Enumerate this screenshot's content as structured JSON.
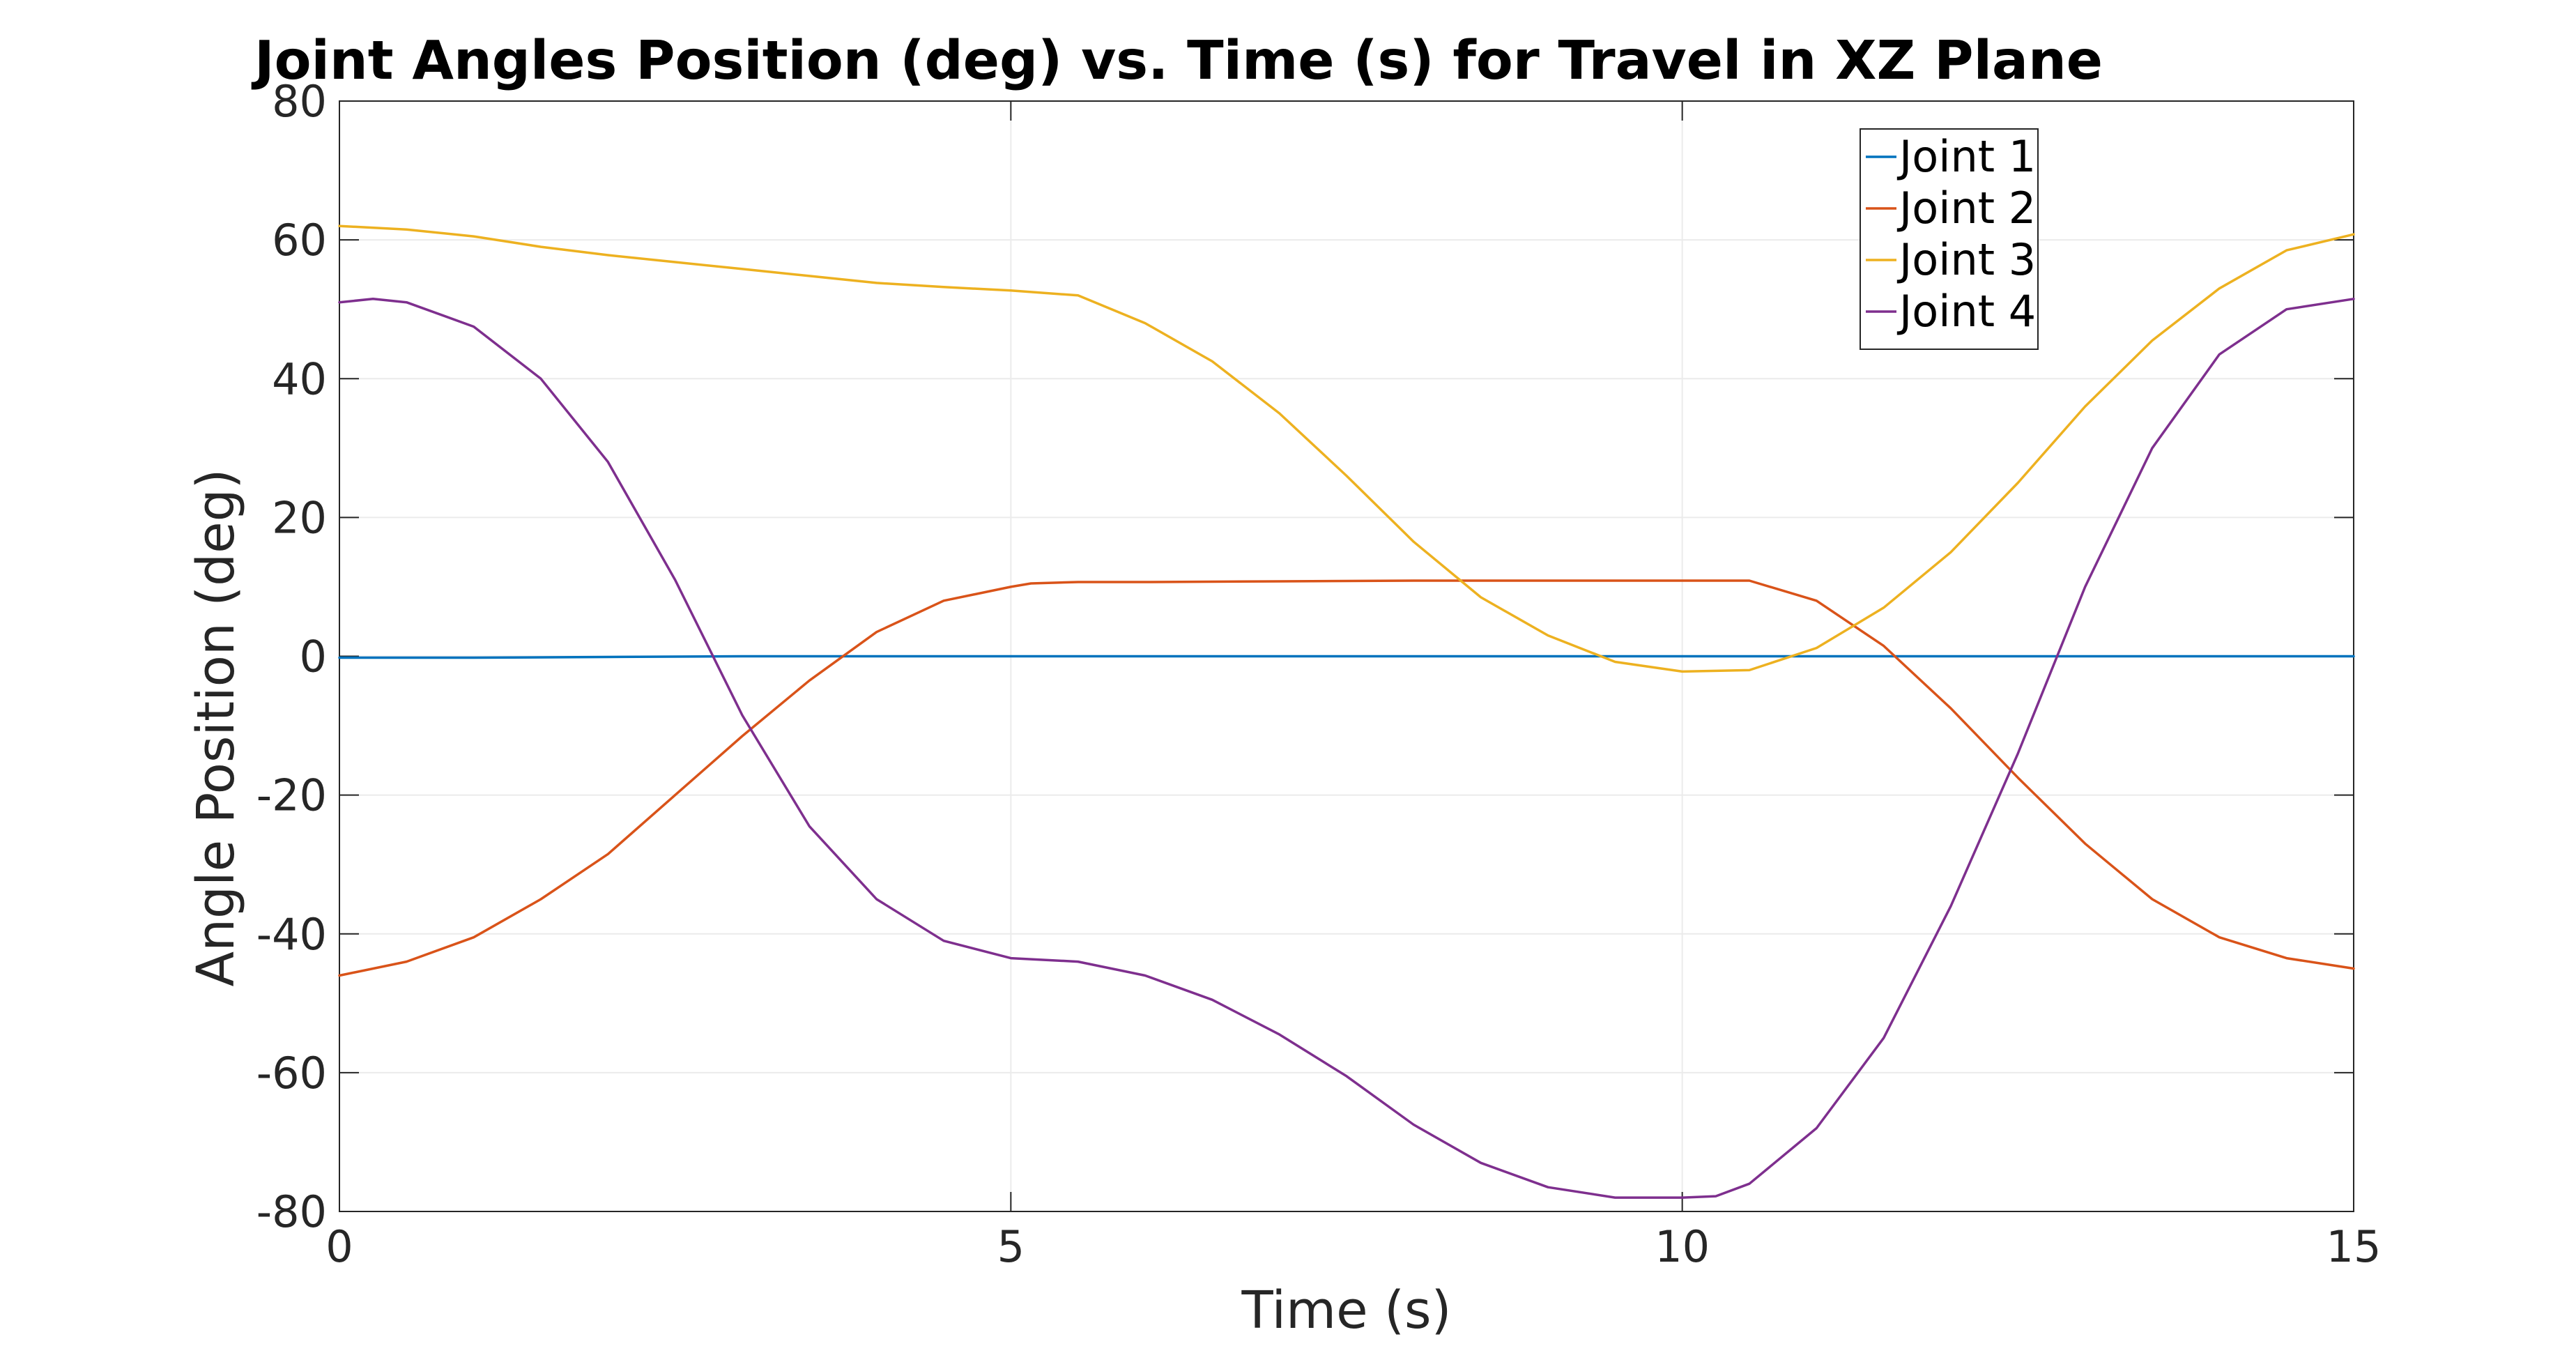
{
  "chart_data": {
    "type": "line",
    "title": "Joint Angles Position (deg) vs. Time (s) for Travel in XZ Plane",
    "xlabel": "Time (s)",
    "ylabel": "Angle Position (deg)",
    "xlim": [
      0,
      15
    ],
    "ylim": [
      -80,
      80
    ],
    "xticks": [
      0,
      5,
      10,
      15
    ],
    "xtick_labels": [
      "0",
      "5",
      "10",
      "15"
    ],
    "yticks": [
      80,
      60,
      40,
      20,
      0,
      -20,
      -40,
      -60,
      -80
    ],
    "ytick_labels": [
      "80",
      "60",
      "40",
      "20",
      "0",
      "-20",
      "-40",
      "-60",
      "-80"
    ],
    "grid": true,
    "legend_position": "top-right",
    "series": [
      {
        "name": "Joint 1",
        "color": "#0072BD",
        "x": [
          0,
          1,
          2,
          3,
          4,
          5,
          6,
          7,
          8,
          9,
          10,
          11,
          12,
          13,
          14,
          15
        ],
        "y": [
          -0.2,
          -0.2,
          -0.1,
          0,
          0,
          0,
          0,
          0,
          0,
          0,
          0,
          0,
          0,
          0,
          0,
          0
        ]
      },
      {
        "name": "Joint 2",
        "color": "#D95319",
        "x": [
          0,
          0.5,
          1,
          1.5,
          2,
          2.5,
          3,
          3.5,
          4,
          4.5,
          5,
          5.15,
          5.5,
          6,
          7,
          8,
          9,
          10,
          10.5,
          11,
          11.5,
          12,
          12.5,
          13,
          13.5,
          14,
          14.5,
          15
        ],
        "y": [
          -46,
          -44,
          -40.5,
          -35,
          -28.5,
          -20,
          -11.5,
          -3.5,
          3.5,
          8,
          10,
          10.5,
          10.7,
          10.7,
          10.8,
          10.9,
          10.9,
          10.9,
          10.9,
          8,
          1.5,
          -7.5,
          -17.5,
          -27,
          -35,
          -40.5,
          -43.5,
          -45
        ]
      },
      {
        "name": "Joint 3",
        "color": "#EDB120",
        "x": [
          0,
          0.5,
          1,
          1.5,
          2,
          2.5,
          3,
          3.5,
          4,
          4.5,
          5,
          5.5,
          6,
          6.5,
          7,
          7.5,
          8,
          8.5,
          9,
          9.5,
          10,
          10.5,
          11,
          11.5,
          12,
          12.5,
          13,
          13.5,
          14,
          14.5,
          15
        ],
        "y": [
          62,
          61.5,
          60.5,
          59,
          57.8,
          56.8,
          55.8,
          54.8,
          53.8,
          53.2,
          52.7,
          52,
          48,
          42.5,
          35,
          26,
          16.5,
          8.5,
          3,
          -0.8,
          -2.2,
          -2,
          1.2,
          7,
          15,
          25,
          36,
          45.5,
          53,
          58.5,
          60.8
        ]
      },
      {
        "name": "Joint 4",
        "color": "#7E2F8E",
        "x": [
          0,
          0.25,
          0.5,
          1,
          1.5,
          2,
          2.5,
          3,
          3.5,
          4,
          4.5,
          5,
          5.5,
          6,
          6.5,
          7,
          7.5,
          8,
          8.5,
          9,
          9.5,
          10,
          10.25,
          10.5,
          11,
          11.5,
          12,
          12.5,
          13,
          13.5,
          14,
          14.5,
          15
        ],
        "y": [
          51,
          51.5,
          51,
          47.5,
          40,
          28,
          11,
          -8.5,
          -24.5,
          -35,
          -41,
          -43.5,
          -44,
          -46,
          -49.5,
          -54.5,
          -60.5,
          -67.5,
          -73,
          -76.5,
          -78,
          -78,
          -77.8,
          -76,
          -68,
          -55,
          -36,
          -14,
          10,
          30,
          43.5,
          50,
          51.5
        ]
      }
    ]
  }
}
